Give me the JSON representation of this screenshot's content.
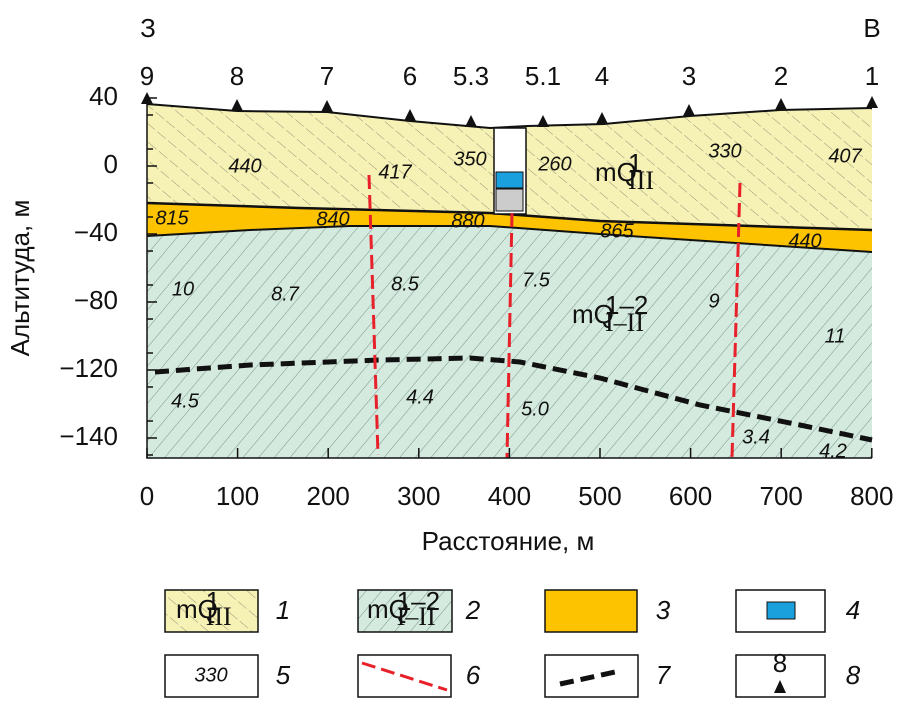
{
  "side_labels": {
    "west": "З",
    "east": "В"
  },
  "stations": [
    "9",
    "8",
    "7",
    "6",
    "5.3",
    "5.1",
    "4",
    "3",
    "2",
    "1"
  ],
  "y_axis": {
    "label": "Альтитуда, м",
    "ticks": [
      "40",
      "0",
      "−40",
      "−80",
      "−120",
      "−140"
    ]
  },
  "x_axis": {
    "label": "Расстояние, м",
    "ticks": [
      "0",
      "100",
      "200",
      "300",
      "400",
      "500",
      "600",
      "700",
      "800"
    ]
  },
  "upper_values": [
    "440",
    "417",
    "350",
    "260",
    "330",
    "407"
  ],
  "yellow_values": [
    "815",
    "840",
    "880",
    "865",
    "440"
  ],
  "green_values": [
    "10",
    "8.7",
    "8.5",
    "7.5",
    "9",
    "11"
  ],
  "deep_values": [
    "4.5",
    "4.4",
    "5.0",
    "3.4",
    "4.2"
  ],
  "formations": [
    {
      "base": "mQ",
      "sup": "1",
      "sub": "III"
    },
    {
      "base": "mQ",
      "sup": "1–2",
      "sub": "I–II"
    }
  ],
  "legend": {
    "numbers": [
      "1",
      "2",
      "3",
      "4",
      "5",
      "6",
      "7",
      "8"
    ],
    "sample_value": "330",
    "sample_station": "8"
  }
}
